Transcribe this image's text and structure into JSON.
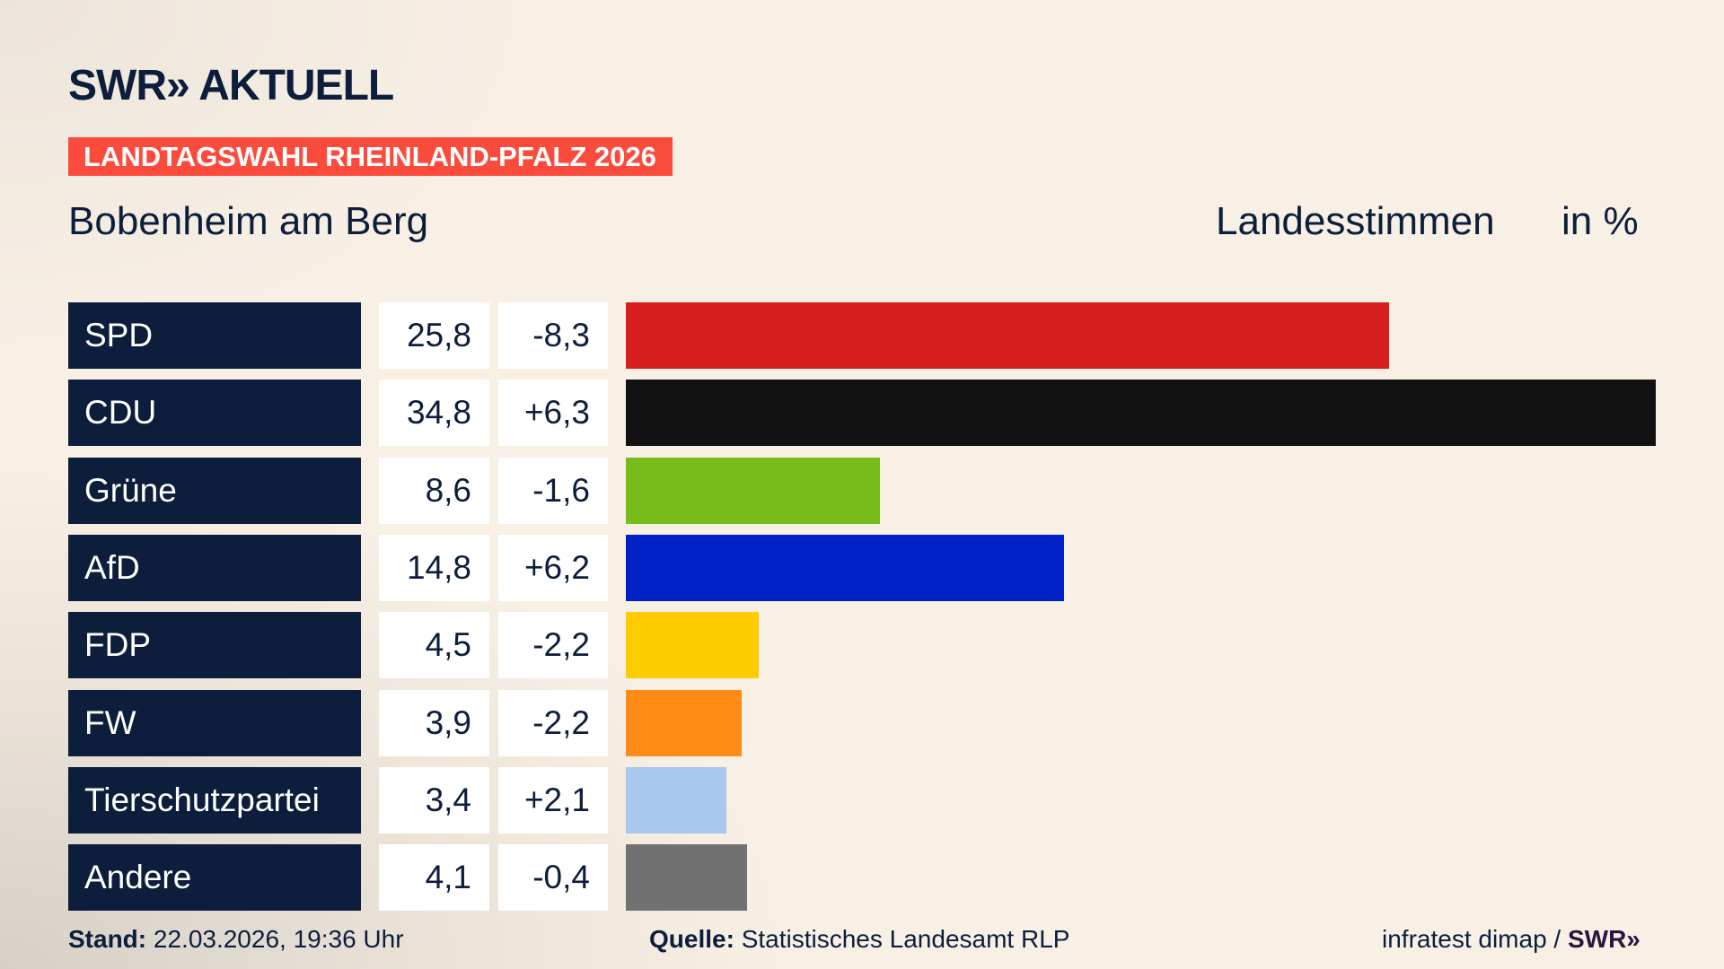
{
  "header": {
    "logo": "SWR» AKTUELL",
    "banner": "LANDTAGSWAHL RHEINLAND-PFALZ 2026",
    "place": "Bobenheim am Berg",
    "metric": "Landesstimmen",
    "unit": "in %"
  },
  "chart_data": {
    "type": "bar",
    "orientation": "horizontal",
    "categories": [
      "SPD",
      "CDU",
      "Grüne",
      "AfD",
      "FDP",
      "FW",
      "Tierschutzpartei",
      "Andere"
    ],
    "values": [
      25.8,
      34.8,
      8.6,
      14.8,
      4.5,
      3.9,
      3.4,
      4.1
    ],
    "values_label": [
      "25,8",
      "34,8",
      "8,6",
      "14,8",
      "4,5",
      "3,9",
      "3,4",
      "4,1"
    ],
    "diff_label": [
      "-8,3",
      "+6,3",
      "-1,6",
      "+6,2",
      "-2,2",
      "-2,2",
      "+2,1",
      "-0,4"
    ],
    "colors": [
      "#d71f1f",
      "#121212",
      "#78bc1b",
      "#0021c8",
      "#ffcc00",
      "#ff8c17",
      "#a8c8ef",
      "#717171"
    ],
    "xlim": [
      0,
      34.8
    ],
    "grid": false
  },
  "footer": {
    "stand_label": "Stand:",
    "stand_value": " 22.03.2026, 19:36 Uhr",
    "source_label": "Quelle:",
    "source_value": " Statistisches Landesamt RLP",
    "credit": "infratest dimap / ",
    "credit_logo": "SWR»"
  }
}
